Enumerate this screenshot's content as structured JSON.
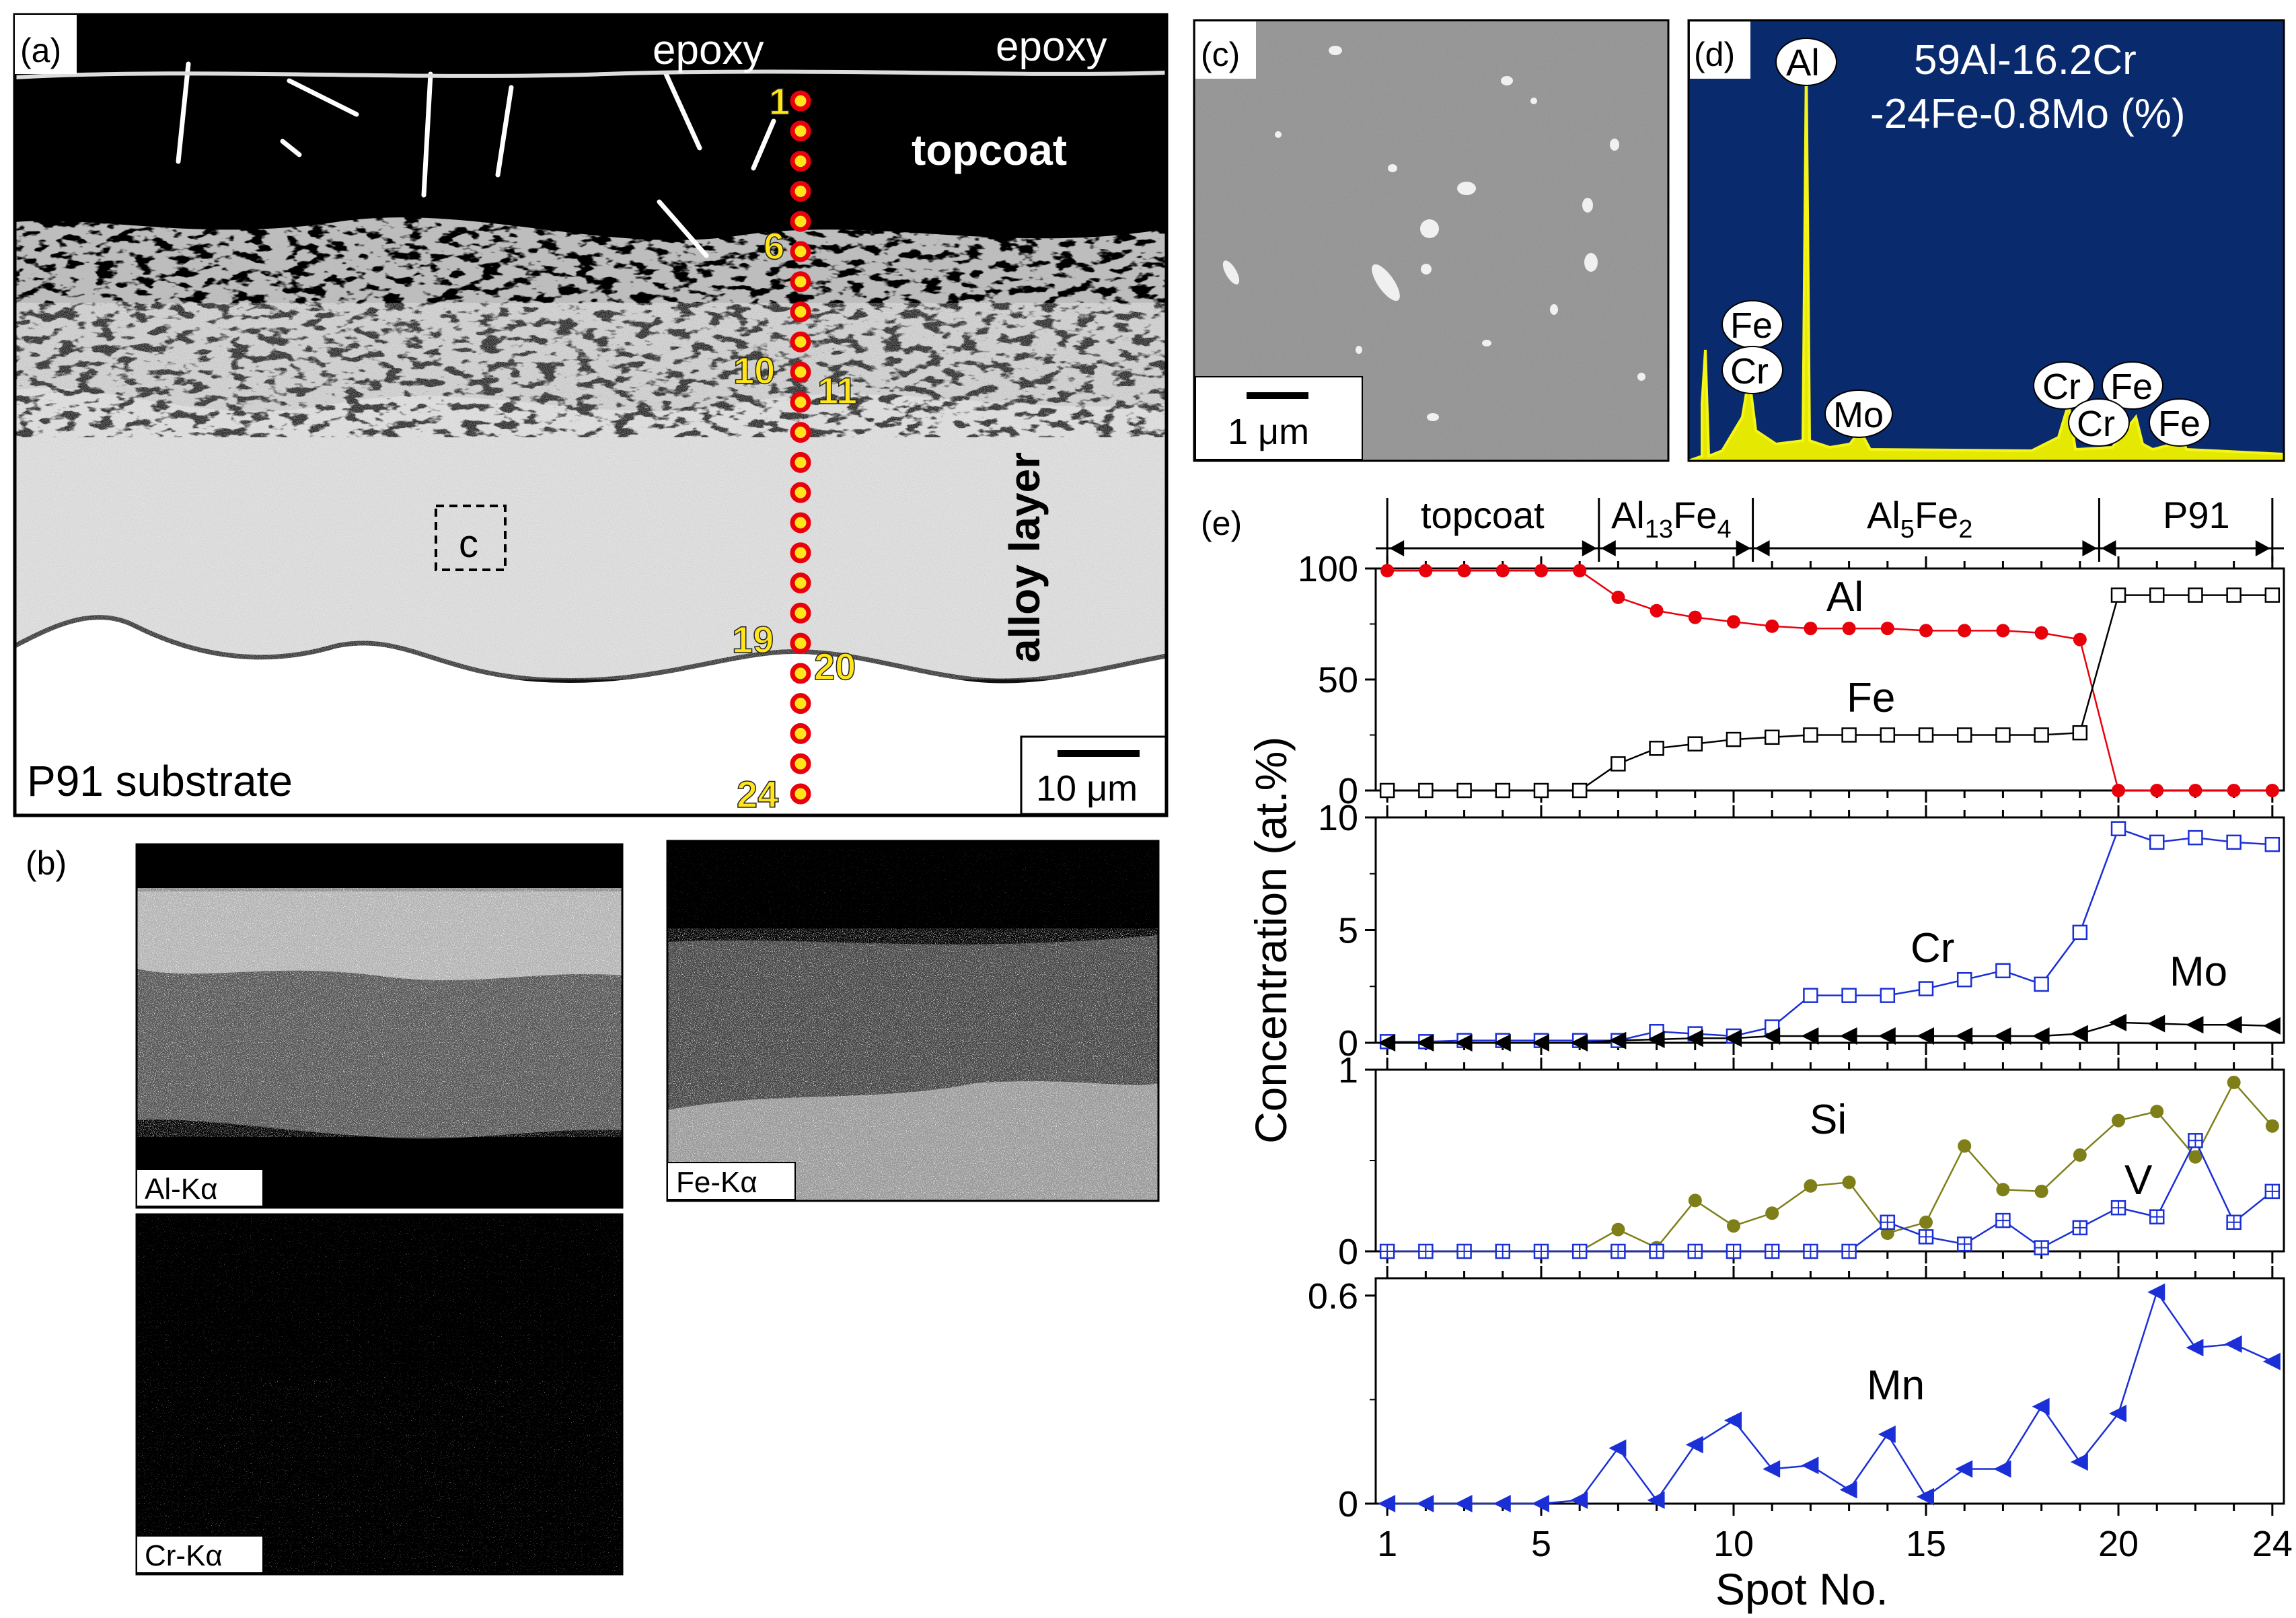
{
  "panel_a": {
    "label": "(a)",
    "epoxy_left": "epoxy",
    "epoxy_right": "epoxy",
    "topcoat": "topcoat",
    "alloy_layer": "alloy layer",
    "substrate": "P91 substrate",
    "region_c": "c",
    "scale": "10 μm",
    "spot_labels": [
      "1",
      "6",
      "10",
      "11",
      "19",
      "20",
      "24"
    ]
  },
  "panel_b": {
    "label": "(b)",
    "maps": [
      "Al-Kα",
      "Fe-Kα",
      "Cr-Kα"
    ]
  },
  "panel_c": {
    "label": "(c)",
    "scale": "1 μm"
  },
  "panel_d": {
    "label": "(d)",
    "composition_line1": "59Al-16.2Cr",
    "composition_line2": "-24Fe-0.8Mo (%)",
    "peaks": [
      "Al",
      "Fe",
      "Cr",
      "Mo",
      "Cr",
      "Fe",
      "Cr",
      "Fe"
    ]
  },
  "panel_e": {
    "label": "(e)",
    "zones": [
      "topcoat",
      "Al13Fe4",
      "Al5Fe2",
      "P91"
    ],
    "ylabel": "Concentration (at.%)",
    "xlabel": "Spot  No.",
    "colors": {
      "Al": "#e8000b",
      "Fe": "#000000",
      "Cr": "#1a2fd6",
      "Mo": "#000000",
      "Si": "#7f7f1a",
      "V": "#1a2fd6",
      "Mn": "#1a2fd6"
    }
  },
  "chart_data": {
    "type": "line",
    "x": [
      1,
      2,
      3,
      4,
      5,
      6,
      7,
      8,
      9,
      10,
      11,
      12,
      13,
      14,
      15,
      16,
      17,
      18,
      19,
      20,
      21,
      22,
      23,
      24
    ],
    "xticks": [
      "1",
      "5",
      "10",
      "15",
      "20",
      "24"
    ],
    "xlabel": "Spot  No.",
    "ylabel": "Concentration (at.%)",
    "subplots": [
      {
        "ylim": [
          0,
          100
        ],
        "yticks": [
          "0",
          "50",
          "100"
        ],
        "series": [
          {
            "name": "Al",
            "values": [
              99,
              99,
              99,
              99,
              99,
              99,
              87,
              81,
              78,
              76,
              74,
              73,
              73,
              73,
              72,
              72,
              72,
              71,
              68,
              0,
              0,
              0,
              0,
              0
            ]
          },
          {
            "name": "Fe",
            "values": [
              0,
              0,
              0,
              0,
              0,
              0,
              12,
              19,
              21,
              23,
              24,
              25,
              25,
              25,
              25,
              25,
              25,
              25,
              26,
              88,
              88,
              88,
              88,
              88
            ]
          }
        ]
      },
      {
        "ylim": [
          0,
          10
        ],
        "yticks": [
          "0",
          "5",
          "10"
        ],
        "series": [
          {
            "name": "Cr",
            "values": [
              0.05,
              0.05,
              0.1,
              0.1,
              0.1,
              0.1,
              0.1,
              0.5,
              0.4,
              0.3,
              0.7,
              2.1,
              2.1,
              2.1,
              2.4,
              2.8,
              3.2,
              2.6,
              4.9,
              9.5,
              8.9,
              9.1,
              8.9,
              8.8
            ]
          },
          {
            "name": "Mo",
            "values": [
              0,
              0,
              0,
              0,
              0,
              0,
              0.1,
              0.15,
              0.2,
              0.2,
              0.3,
              0.3,
              0.3,
              0.3,
              0.3,
              0.3,
              0.3,
              0.3,
              0.4,
              0.9,
              0.85,
              0.8,
              0.8,
              0.75
            ]
          }
        ]
      },
      {
        "ylim": [
          0,
          1
        ],
        "yticks": [
          "0",
          "1"
        ],
        "series": [
          {
            "name": "Si",
            "values": [
              0,
              0,
              0,
              0,
              0,
              0,
              0.12,
              0.02,
              0.28,
              0.14,
              0.21,
              0.36,
              0.38,
              0.1,
              0.16,
              0.58,
              0.34,
              0.33,
              0.53,
              0.72,
              0.77,
              0.52,
              0.93,
              0.69
            ]
          },
          {
            "name": "V",
            "values": [
              0,
              0,
              0,
              0,
              0,
              0,
              0,
              0,
              0,
              0,
              0,
              0,
              0,
              0.16,
              0.08,
              0.04,
              0.17,
              0.02,
              0.13,
              0.24,
              0.19,
              0.61,
              0.16,
              0.33
            ]
          }
        ]
      },
      {
        "ylim": [
          0,
          0.65
        ],
        "yticks": [
          "0",
          "0.6"
        ],
        "series": [
          {
            "name": "Mn",
            "values": [
              0,
              0,
              0,
              0,
              0,
              0.01,
              0.16,
              0.01,
              0.17,
              0.24,
              0.1,
              0.11,
              0.04,
              0.2,
              0.02,
              0.1,
              0.1,
              0.28,
              0.12,
              0.26,
              0.61,
              0.45,
              0.46,
              0.41
            ]
          }
        ]
      }
    ]
  }
}
